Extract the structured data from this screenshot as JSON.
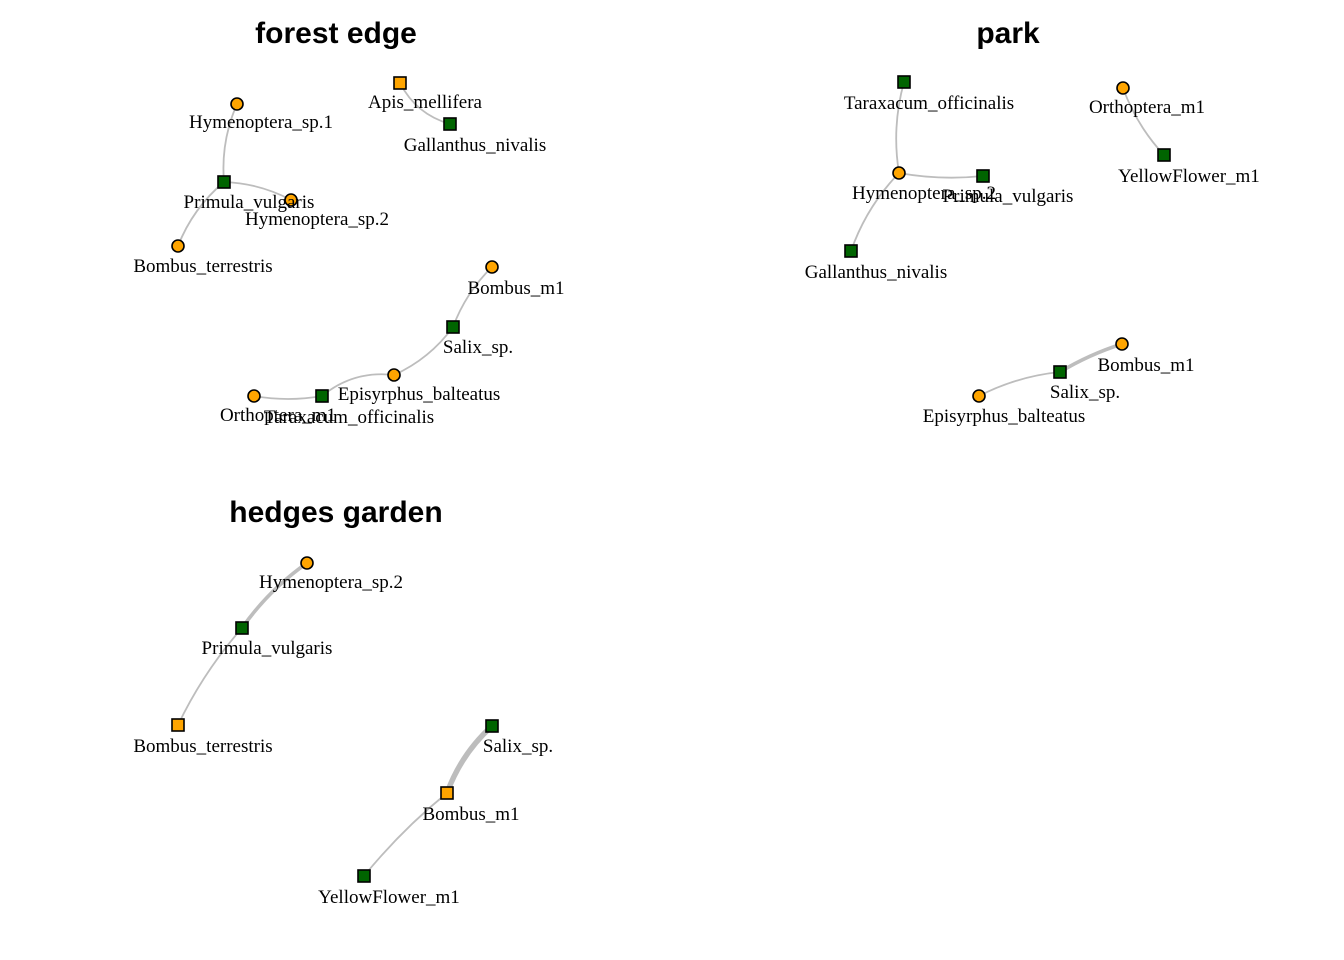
{
  "colors": {
    "insect": "#ffa500",
    "plant": "#006400",
    "edge": "#bdbdbd",
    "outline": "#000000",
    "background": "#ffffff"
  },
  "panels": [
    {
      "title": "forest edge",
      "nodes": [
        {
          "id": "Apis_mellifera",
          "shape": "square",
          "color": "insect"
        },
        {
          "id": "Gallanthus_nivalis",
          "shape": "square",
          "color": "plant"
        },
        {
          "id": "Hymenoptera_sp.1",
          "shape": "circle",
          "color": "insect"
        },
        {
          "id": "Primula_vulgaris",
          "shape": "square",
          "color": "plant"
        },
        {
          "id": "Hymenoptera_sp.2",
          "shape": "circle",
          "color": "insect"
        },
        {
          "id": "Bombus_terrestris",
          "shape": "circle",
          "color": "insect"
        },
        {
          "id": "Bombus_m1",
          "shape": "circle",
          "color": "insect"
        },
        {
          "id": "Salix_sp.",
          "shape": "square",
          "color": "plant"
        },
        {
          "id": "Episyrphus_balteatus",
          "shape": "circle",
          "color": "insect"
        },
        {
          "id": "Orthoptera_m1",
          "shape": "circle",
          "color": "insect"
        },
        {
          "id": "Taraxacum_officinalis",
          "shape": "square",
          "color": "plant"
        }
      ],
      "edges": [
        {
          "from": "Apis_mellifera",
          "to": "Gallanthus_nivalis",
          "weight": 1
        },
        {
          "from": "Hymenoptera_sp.1",
          "to": "Primula_vulgaris",
          "weight": 1
        },
        {
          "from": "Primula_vulgaris",
          "to": "Hymenoptera_sp.2",
          "weight": 1
        },
        {
          "from": "Primula_vulgaris",
          "to": "Bombus_terrestris",
          "weight": 1
        },
        {
          "from": "Bombus_m1",
          "to": "Salix_sp.",
          "weight": 1
        },
        {
          "from": "Salix_sp.",
          "to": "Episyrphus_balteatus",
          "weight": 1
        },
        {
          "from": "Episyrphus_balteatus",
          "to": "Taraxacum_officinalis",
          "weight": 1
        },
        {
          "from": "Orthoptera_m1",
          "to": "Taraxacum_officinalis",
          "weight": 1
        }
      ]
    },
    {
      "title": "park",
      "nodes": [
        {
          "id": "Taraxacum_officinalis",
          "shape": "square",
          "color": "plant"
        },
        {
          "id": "Orthoptera_m1",
          "shape": "circle",
          "color": "insect"
        },
        {
          "id": "YellowFlower_m1",
          "shape": "square",
          "color": "plant"
        },
        {
          "id": "Hymenoptera_sp.2",
          "shape": "circle",
          "color": "insect"
        },
        {
          "id": "Primula_vulgaris",
          "shape": "square",
          "color": "plant"
        },
        {
          "id": "Gallanthus_nivalis",
          "shape": "square",
          "color": "plant"
        },
        {
          "id": "Bombus_m1",
          "shape": "circle",
          "color": "insect"
        },
        {
          "id": "Salix_sp.",
          "shape": "square",
          "color": "plant"
        },
        {
          "id": "Episyrphus_balteatus",
          "shape": "circle",
          "color": "insect"
        }
      ],
      "edges": [
        {
          "from": "Taraxacum_officinalis",
          "to": "Hymenoptera_sp.2",
          "weight": 1
        },
        {
          "from": "Hymenoptera_sp.2",
          "to": "Primula_vulgaris",
          "weight": 1
        },
        {
          "from": "Hymenoptera_sp.2",
          "to": "Gallanthus_nivalis",
          "weight": 1
        },
        {
          "from": "Orthoptera_m1",
          "to": "YellowFlower_m1",
          "weight": 1
        },
        {
          "from": "Bombus_m1",
          "to": "Salix_sp.",
          "weight": 2
        },
        {
          "from": "Salix_sp.",
          "to": "Episyrphus_balteatus",
          "weight": 1
        }
      ]
    },
    {
      "title": "hedges garden",
      "nodes": [
        {
          "id": "Hymenoptera_sp.2",
          "shape": "circle",
          "color": "insect"
        },
        {
          "id": "Primula_vulgaris",
          "shape": "square",
          "color": "plant"
        },
        {
          "id": "Bombus_terrestris",
          "shape": "square",
          "color": "insect"
        },
        {
          "id": "Salix_sp.",
          "shape": "square",
          "color": "plant"
        },
        {
          "id": "Bombus_m1",
          "shape": "square",
          "color": "insect"
        },
        {
          "id": "YellowFlower_m1",
          "shape": "square",
          "color": "plant"
        }
      ],
      "edges": [
        {
          "from": "Hymenoptera_sp.2",
          "to": "Primula_vulgaris",
          "weight": 2
        },
        {
          "from": "Primula_vulgaris",
          "to": "Bombus_terrestris",
          "weight": 1
        },
        {
          "from": "Salix_sp.",
          "to": "Bombus_m1",
          "weight": 3
        },
        {
          "from": "Bombus_m1",
          "to": "YellowFlower_m1",
          "weight": 1
        }
      ]
    }
  ]
}
